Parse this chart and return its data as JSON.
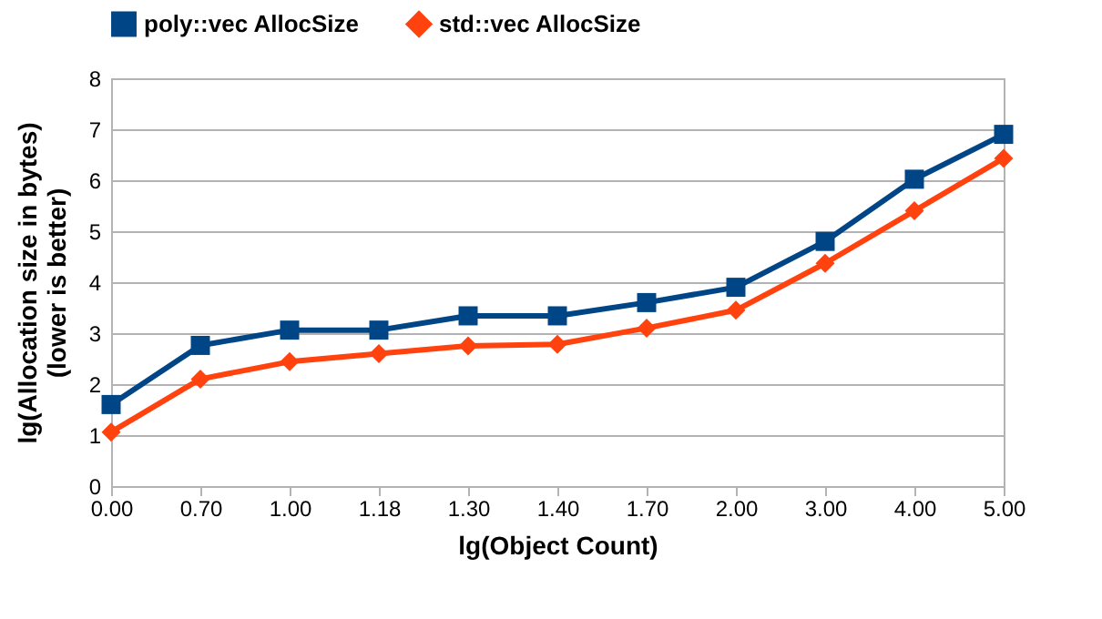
{
  "chart_data": {
    "type": "line",
    "xlabel": "lg(Object Count)",
    "ylabel": [
      "lg(Allocation size in bytes)",
      "(lower is better)"
    ],
    "categories": [
      "0.00",
      "0.70",
      "1.00",
      "1.18",
      "1.30",
      "1.40",
      "1.70",
      "2.00",
      "3.00",
      "4.00",
      "5.00"
    ],
    "series": [
      {
        "name": "poly::vec AllocSize",
        "color": "#004586",
        "marker": "square",
        "values": [
          1.6,
          2.76,
          3.06,
          3.06,
          3.34,
          3.34,
          3.6,
          3.9,
          4.8,
          6.02,
          6.9
        ]
      },
      {
        "name": "std::vec AllocSize",
        "color": "#ff420e",
        "marker": "diamond",
        "values": [
          1.06,
          2.1,
          2.44,
          2.6,
          2.75,
          2.78,
          3.1,
          3.45,
          4.37,
          5.4,
          6.43
        ]
      }
    ],
    "ylim": [
      0,
      8
    ],
    "yticks": [
      0,
      1,
      2,
      3,
      4,
      5,
      6,
      7,
      8
    ],
    "grid": "y",
    "legend": "top",
    "line_style": "solid"
  }
}
